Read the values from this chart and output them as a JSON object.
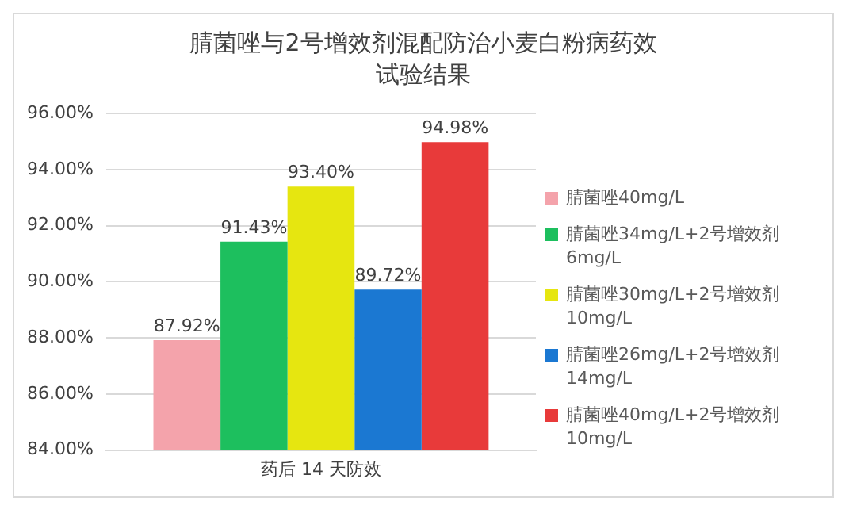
{
  "chart_data": {
    "type": "bar",
    "title": "腈菌唑与2号增效剂混配防治小麦白粉病药效试验结果",
    "categories": [
      "药后 14 天防效"
    ],
    "series": [
      {
        "name": "腈菌唑40mg/L",
        "color": "#f4a3ab",
        "values": [
          87.92
        ],
        "value_labels": [
          "87.92%"
        ]
      },
      {
        "name": "腈菌唑34mg/L+2号增效剂6mg/L",
        "color": "#1dbf5e",
        "values": [
          91.43
        ],
        "value_labels": [
          "91.43%"
        ]
      },
      {
        "name": "腈菌唑30mg/L+2号增效剂10mg/L",
        "color": "#e6e610",
        "values": [
          93.4
        ],
        "value_labels": [
          "93.40%"
        ]
      },
      {
        "name": "腈菌唑26mg/L+2号增效剂14mg/L",
        "color": "#1b78d2",
        "values": [
          89.72
        ],
        "value_labels": [
          "89.72%"
        ]
      },
      {
        "name": "腈菌唑40mg/L+2号增效剂10mg/L",
        "color": "#e83a3a",
        "values": [
          94.98
        ],
        "value_labels": [
          "94.98%"
        ]
      }
    ],
    "ylim": [
      84,
      96
    ],
    "yticks": [
      {
        "value": 84,
        "label": "84.00%"
      },
      {
        "value": 86,
        "label": "86.00%"
      },
      {
        "value": 88,
        "label": "88.00%"
      },
      {
        "value": 90,
        "label": "90.00%"
      },
      {
        "value": 92,
        "label": "92.00%"
      },
      {
        "value": 94,
        "label": "94.00%"
      },
      {
        "value": 96,
        "label": "96.00%"
      }
    ],
    "grid": "y",
    "legend": "right"
  }
}
